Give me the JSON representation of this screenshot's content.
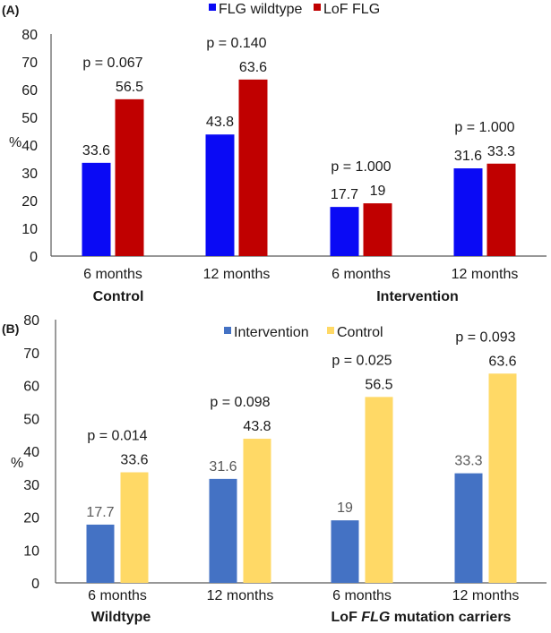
{
  "chart_data": [
    {
      "type": "bar",
      "panel_label": "(A)",
      "ylabel": "%",
      "ylim": [
        0,
        80
      ],
      "yticks": [
        0,
        10,
        20,
        30,
        40,
        50,
        60,
        70,
        80
      ],
      "grid": false,
      "legend_position": "top-center",
      "categories": [
        "6 months",
        "12 months",
        "6 months",
        "12 months"
      ],
      "groups": [
        {
          "label": "Control",
          "span": [
            0,
            1
          ]
        },
        {
          "label": "Intervention",
          "span": [
            2,
            3
          ]
        }
      ],
      "series": [
        {
          "name": "FLG wildtype",
          "color": "#0A0AF5",
          "label_color": "#1a1a1a",
          "values": [
            33.6,
            43.8,
            17.7,
            31.6
          ],
          "labels": [
            "33.6",
            "43.8",
            "17.7",
            "31.6"
          ]
        },
        {
          "name": "LoF FLG",
          "color": "#C00000",
          "label_color": "#1a1a1a",
          "values": [
            56.5,
            63.6,
            19,
            33.3
          ],
          "labels": [
            "56.5",
            "63.6",
            "19",
            "33.3"
          ]
        }
      ],
      "p_values": [
        "p = 0.067",
        "p = 0.140",
        "p = 1.000",
        "p = 1.000"
      ]
    },
    {
      "type": "bar",
      "panel_label": "(B)",
      "ylabel": "%",
      "ylim": [
        0,
        80
      ],
      "yticks": [
        0,
        10,
        20,
        30,
        40,
        50,
        60,
        70,
        80
      ],
      "grid": false,
      "legend_position": "top-center",
      "categories": [
        "6 months",
        "12 months",
        "6 months",
        "12 months"
      ],
      "groups": [
        {
          "label": "Wildtype",
          "span": [
            0,
            1
          ]
        },
        {
          "label_parts": [
            "LoF ",
            "FLG",
            " mutation carriers"
          ],
          "span": [
            2,
            3
          ]
        }
      ],
      "series": [
        {
          "name": "Intervention",
          "color": "#4472C4",
          "label_color": "#595959",
          "values": [
            17.7,
            31.6,
            19,
            33.3
          ],
          "labels": [
            "17.7",
            "31.6",
            "19",
            "33.3"
          ]
        },
        {
          "name": "Control",
          "color": "#FFD966",
          "label_color": "#1a1a1a",
          "values": [
            33.6,
            43.8,
            56.5,
            63.6
          ],
          "labels": [
            "33.6",
            "43.8",
            "56.5",
            "63.6"
          ]
        }
      ],
      "p_values": [
        "p = 0.014",
        "p = 0.098",
        "p = 0.025",
        "p = 0.093"
      ]
    }
  ]
}
